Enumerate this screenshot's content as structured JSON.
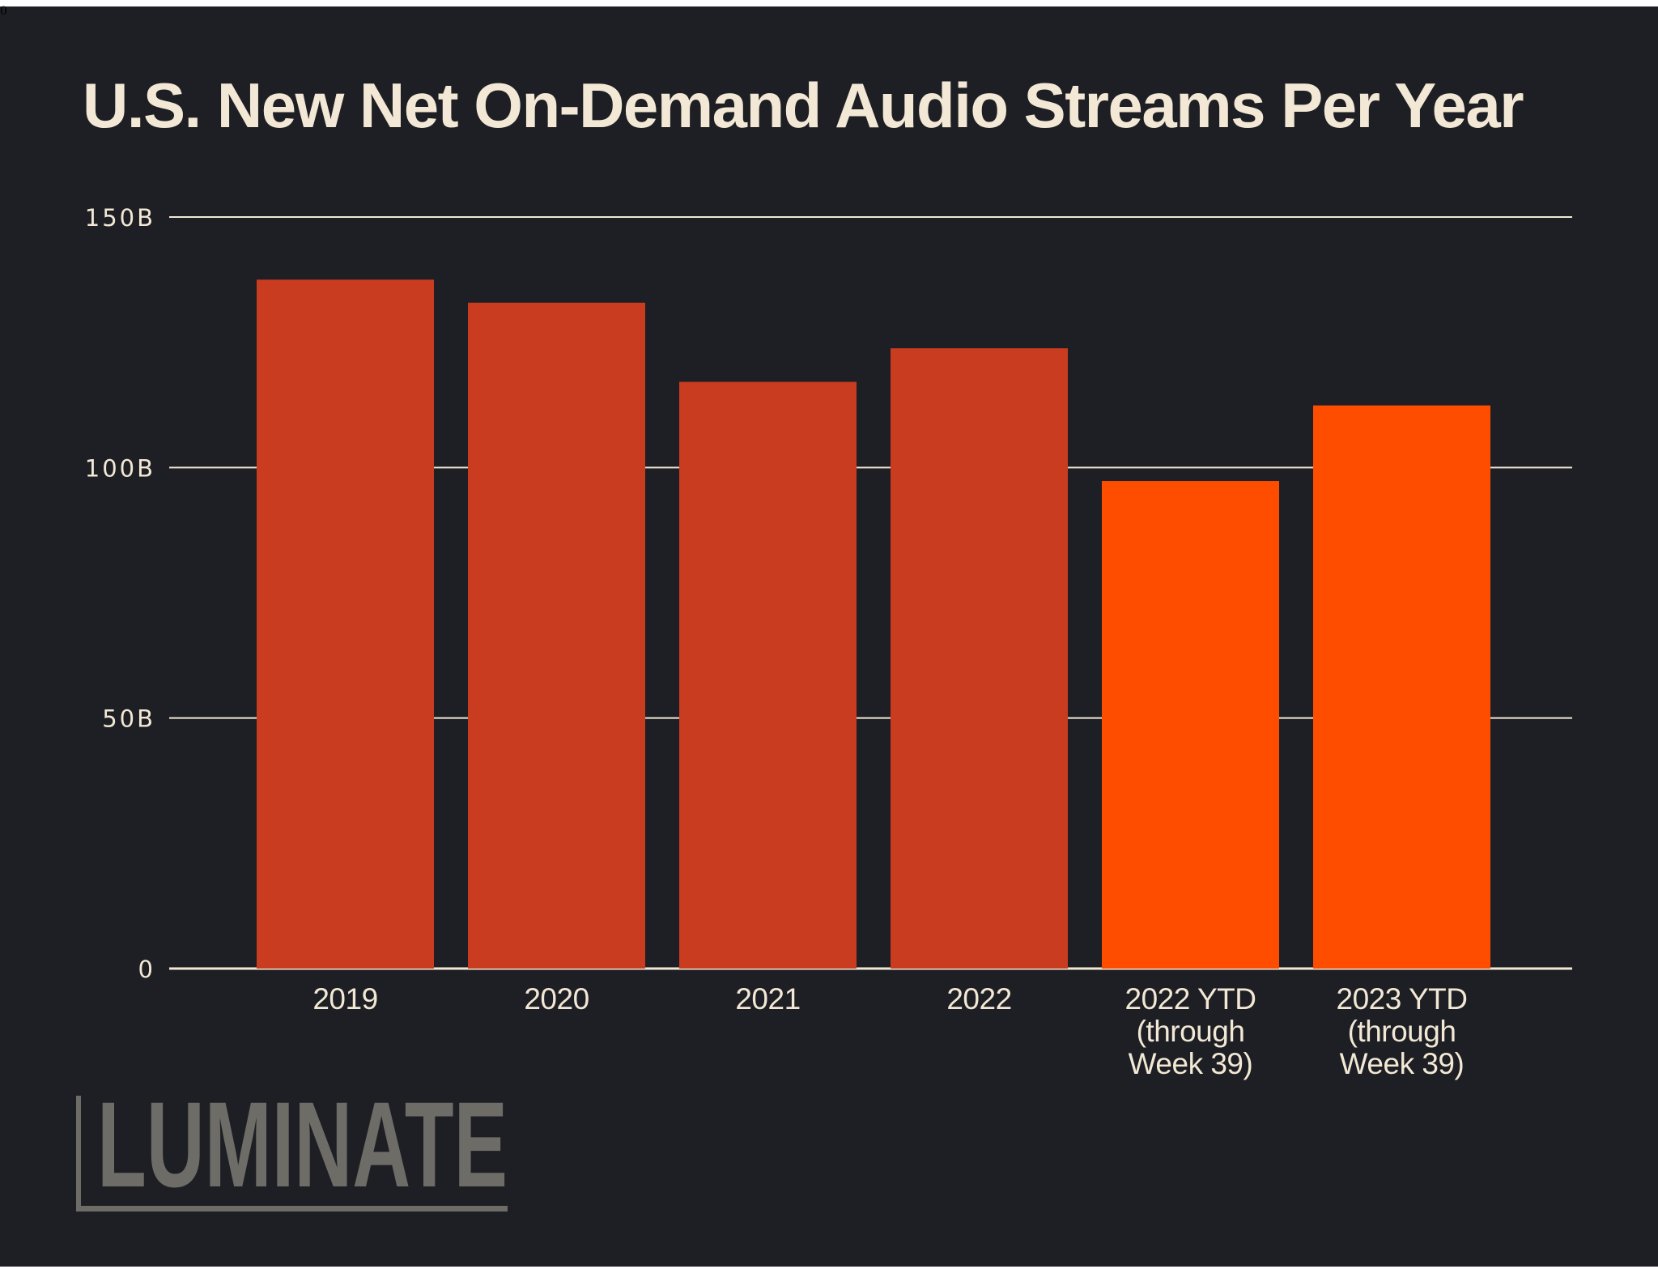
{
  "stray_text": "0",
  "chart_data": {
    "type": "bar",
    "title": "U.S. New Net On-Demand Audio Streams Per Year",
    "categories": [
      [
        "2019"
      ],
      [
        "2020"
      ],
      [
        "2021"
      ],
      [
        "2022"
      ],
      [
        "2022 YTD",
        "(through",
        "Week 39)"
      ],
      [
        "2023 YTD",
        "(through",
        "Week 39)"
      ]
    ],
    "values": [
      137.5,
      132.9,
      117.1,
      123.8,
      97.3,
      112.4
    ],
    "unit": "B",
    "ylim": [
      0,
      150
    ],
    "yticks": [
      0,
      50,
      100,
      150
    ],
    "ytick_labels": [
      "0",
      "50B",
      "100B",
      "150B"
    ],
    "xlabel": "",
    "ylabel": "",
    "grid": true,
    "colors": {
      "full_year": "#c93c20",
      "ytd": "#ff4d00",
      "background": "#1e1f24",
      "text": "#f2e8d5",
      "grid": "#f2e8d5"
    },
    "bar_colors": [
      "#c93c20",
      "#c93c20",
      "#c93c20",
      "#c93c20",
      "#ff4d00",
      "#ff4d00"
    ]
  },
  "logo": {
    "text": "LUMINATE",
    "color": "#6e6c67"
  }
}
